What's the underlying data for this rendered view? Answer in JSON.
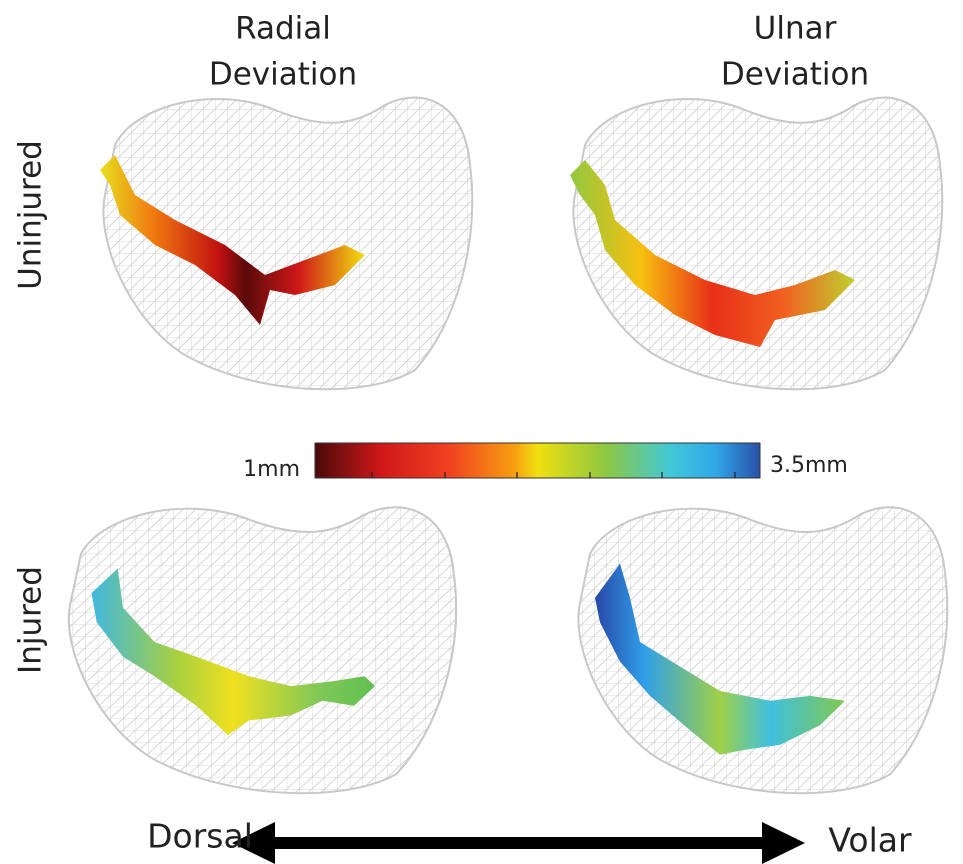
{
  "columns": [
    {
      "title_lines": [
        "Radial",
        "Deviation"
      ]
    },
    {
      "title_lines": [
        "Ulnar",
        "Deviation"
      ]
    }
  ],
  "rows": [
    {
      "label": "Uninjured"
    },
    {
      "label": "Injured"
    }
  ],
  "colorbar": {
    "min_label": "1mm",
    "max_label": "3.5mm"
  },
  "direction": {
    "left_label": "Dorsal",
    "right_label": "Volar"
  }
}
